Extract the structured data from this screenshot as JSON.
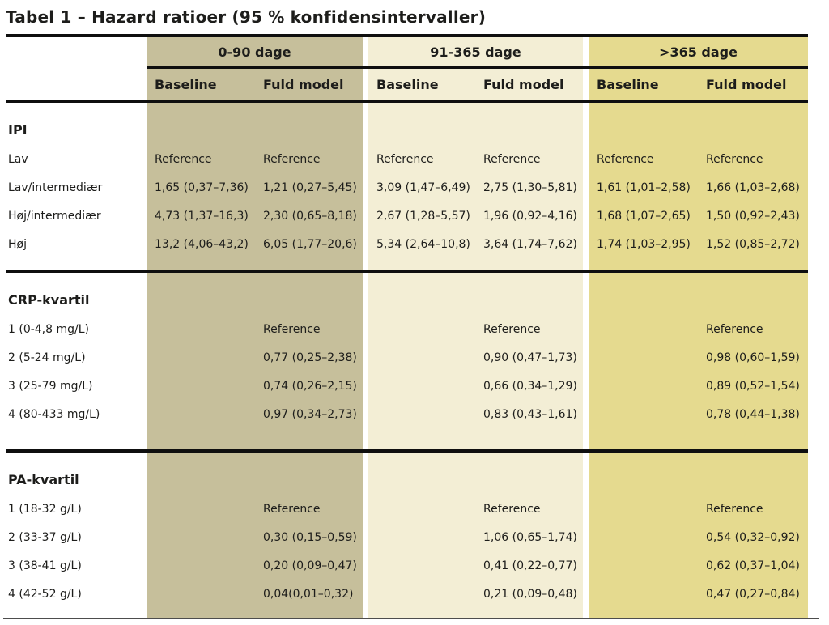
{
  "title": "Tabel 1 – Hazard ratioer (95 % konfidensintervaller)",
  "colors": {
    "group1_bg": "#c6bf9b",
    "group2_bg": "#f3eed5",
    "group3_bg": "#e5da8f",
    "text": "#1d1d1b",
    "rule": "#0f0f0f"
  },
  "header": {
    "groups": [
      {
        "label": "0-90 dage"
      },
      {
        "label": "91-365 dage"
      },
      {
        "label": ">365 dage"
      }
    ],
    "subheaders": [
      "Baseline",
      "Fuld model",
      "Baseline",
      "Fuld model",
      "Baseline",
      "Fuld model"
    ]
  },
  "sections": [
    {
      "heading": "IPI",
      "rows": [
        {
          "label": "Lav",
          "cells": [
            "Reference",
            "Reference",
            "Reference",
            "Reference",
            "Reference",
            "Reference"
          ]
        },
        {
          "label": "Lav/intermediær",
          "cells": [
            "1,65 (0,37–7,36)",
            "1,21 (0,27–5,45)",
            "3,09 (1,47–6,49)",
            "2,75 (1,30–5,81)",
            "1,61 (1,01–2,58)",
            "1,66 (1,03–2,68)"
          ]
        },
        {
          "label": "Høj/intermediær",
          "cells": [
            "4,73 (1,37–16,3)",
            "2,30 (0,65–8,18)",
            "2,67 (1,28–5,57)",
            "1,96 (0,92–4,16)",
            "1,68 (1,07–2,65)",
            "1,50 (0,92–2,43)"
          ]
        },
        {
          "label": "Høj",
          "cells": [
            "13,2 (4,06–43,2)",
            "6,05 (1,77–20,6)",
            "5,34 (2,64–10,8)",
            "3,64 (1,74–7,62)",
            "1,74 (1,03–2,95)",
            "1,52 (0,85–2,72)"
          ]
        }
      ]
    },
    {
      "heading": "CRP-kvartil",
      "rows": [
        {
          "label": "1 (0-4,8 mg/L)",
          "cells": [
            "",
            "Reference",
            "",
            "Reference",
            "",
            "Reference"
          ]
        },
        {
          "label": "2 (5-24 mg/L)",
          "cells": [
            "",
            "0,77 (0,25–2,38)",
            "",
            "0,90 (0,47–1,73)",
            "",
            "0,98 (0,60–1,59)"
          ]
        },
        {
          "label": "3 (25-79 mg/L)",
          "cells": [
            "",
            "0,74 (0,26–2,15)",
            "",
            "0,66 (0,34–1,29)",
            "",
            "0,89 (0,52–1,54)"
          ]
        },
        {
          "label": "4 (80-433 mg/L)",
          "cells": [
            "",
            "0,97 (0,34–2,73)",
            "",
            "0,83 (0,43–1,61)",
            "",
            "0,78 (0,44–1,38)"
          ]
        }
      ]
    },
    {
      "heading": "PA-kvartil",
      "rows": [
        {
          "label": "1 (18-32 g/L)",
          "cells": [
            "",
            "Reference",
            "",
            "Reference",
            "",
            "Reference"
          ]
        },
        {
          "label": "2 (33-37 g/L)",
          "cells": [
            "",
            "0,30 (0,15–0,59)",
            "",
            "1,06 (0,65–1,74)",
            "",
            "0,54 (0,32–0,92)"
          ]
        },
        {
          "label": "3 (38-41 g/L)",
          "cells": [
            "",
            "0,20 (0,09–0,47)",
            "",
            "0,41 (0,22–0,77)",
            "",
            "0,62 (0,37–1,04)"
          ]
        },
        {
          "label": "4 (42-52 g/L)",
          "cells": [
            "",
            "0,04(0,01–0,32)",
            "",
            "0,21 (0,09–0,48)",
            "",
            "0,47 (0,27–0,84)"
          ]
        }
      ]
    }
  ]
}
